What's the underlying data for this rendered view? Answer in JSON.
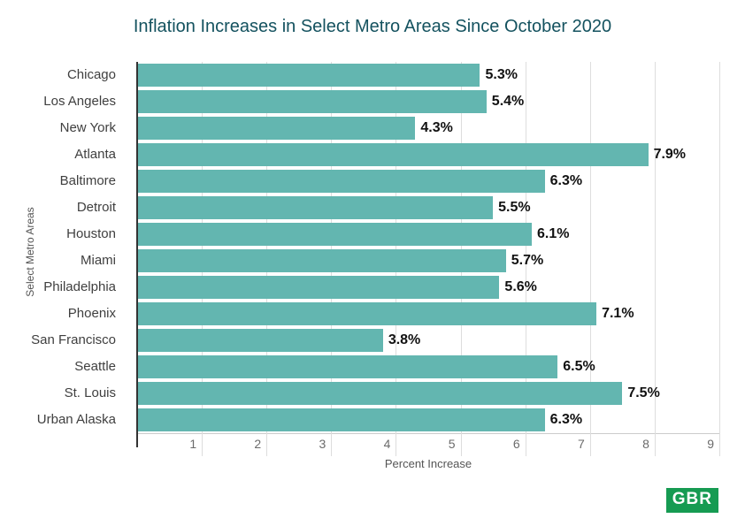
{
  "title": "Inflation Increases in Select Metro Areas Since October 2020",
  "chart_data": {
    "type": "bar",
    "orientation": "horizontal",
    "title": "Inflation Increases in Select Metro Areas Since October 2020",
    "xlabel": "Percent Increase",
    "ylabel": "Select Metro Areas",
    "categories": [
      "Chicago",
      "Los Angeles",
      "New York",
      "Atlanta",
      "Baltimore",
      "Detroit",
      "Houston",
      "Miami",
      "Philadelphia",
      "Phoenix",
      "San Francisco",
      "Seattle",
      "St. Louis",
      "Urban Alaska"
    ],
    "values": [
      5.3,
      5.4,
      4.3,
      7.9,
      6.3,
      5.5,
      6.1,
      5.7,
      5.6,
      7.1,
      3.8,
      6.5,
      7.5,
      6.3
    ],
    "value_labels": [
      "5.3%",
      "5.4%",
      "4.3%",
      "7.9%",
      "6.3%",
      "5.5%",
      "6.1%",
      "5.7%",
      "5.6%",
      "7.1%",
      "3.8%",
      "6.5%",
      "7.5%",
      "6.3%"
    ],
    "xlim": [
      0,
      9
    ],
    "x_ticks": [
      1,
      2,
      3,
      4,
      5,
      6,
      7,
      8,
      9
    ],
    "grid": "vertical",
    "legend": "none",
    "colors": {
      "bar": "#63b6b0",
      "title": "#14525f",
      "axis_line": "#333333",
      "gridline": "#dddddd",
      "tick_label": "#6b6b6b",
      "category_label": "#3f3f3f",
      "value_label": "#111111",
      "axis_title": "#555555"
    }
  },
  "logo": {
    "label": "GBR",
    "background": "#169b52",
    "text_color": "#ffffff"
  }
}
